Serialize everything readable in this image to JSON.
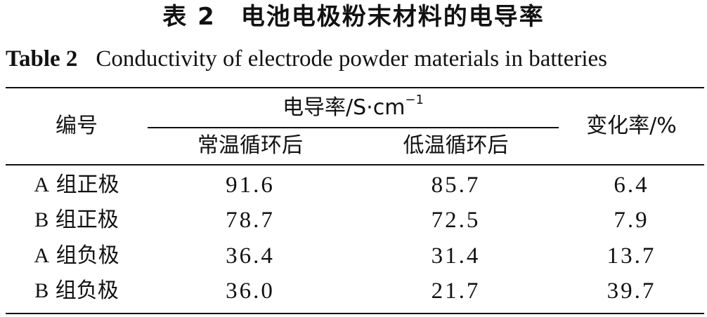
{
  "title_cn": "表 2　电池电极粉末材料的电导率",
  "title_en_number": "Table 2",
  "title_en_text": "Conductivity of electrode powder materials in batteries",
  "header": {
    "id_col": "编号",
    "group": "电导率/S·cm",
    "group_exp": "−1",
    "sub_normal": "常温循环后",
    "sub_low": "低温循环后",
    "change": "变化率/%"
  },
  "rows": [
    {
      "id_letter": "A",
      "id_cn": " 组正极",
      "normal": "91.6",
      "low": "85.7",
      "change": "6.4"
    },
    {
      "id_letter": "B",
      "id_cn": " 组正极",
      "normal": "78.7",
      "low": "72.5",
      "change": "7.9"
    },
    {
      "id_letter": "A",
      "id_cn": " 组负极",
      "normal": "36.4",
      "low": "31.4",
      "change": "13.7"
    },
    {
      "id_letter": "B",
      "id_cn": " 组负极",
      "normal": "36.0",
      "low": "21.7",
      "change": "39.7"
    }
  ]
}
